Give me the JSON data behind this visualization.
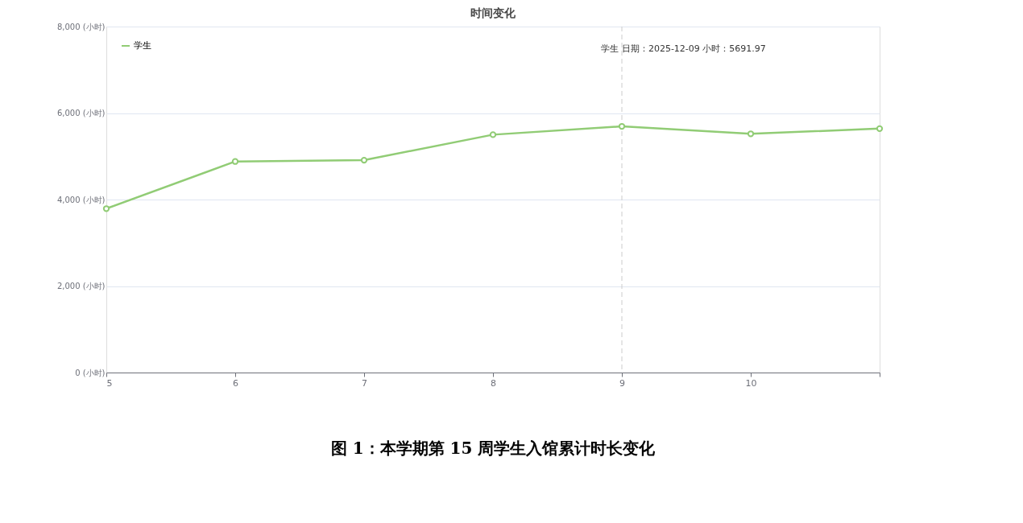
{
  "chart_data": {
    "type": "line",
    "title": "时间变化",
    "x": [
      5,
      6,
      7,
      8,
      9,
      10,
      11
    ],
    "series": [
      {
        "name": "学生",
        "color": "#91cc75",
        "values": [
          3790,
          4880,
          4910,
          5500,
          5691.97,
          5520,
          5640
        ]
      }
    ],
    "xlim": [
      5,
      11
    ],
    "xticks": [
      5,
      6,
      7,
      8,
      9,
      10,
      {
        "value": 11,
        "label": null
      }
    ],
    "ylim": [
      0,
      8000
    ],
    "yticks": [
      {
        "value": 0,
        "label": "0 (小时)"
      },
      {
        "value": 2000,
        "label": "2,000 (小时)"
      },
      {
        "value": 4000,
        "label": "4,000 (小时)"
      },
      {
        "value": 6000,
        "label": "6,000 (小时)"
      },
      {
        "value": 8000,
        "label": "8,000 (小时)"
      }
    ],
    "grid": "y",
    "legend": "top left",
    "marker": "circle",
    "line_style": "solid",
    "ref_lines": [
      {
        "axis": "x",
        "value": 9,
        "color": "#cccccc",
        "line_style": "dashed"
      }
    ],
    "annotations": [
      "学生    日期：2025-12-09    小时：5691.97",
      "图 1：本学期第 15 周学生入馆累计时长变化"
    ]
  }
}
